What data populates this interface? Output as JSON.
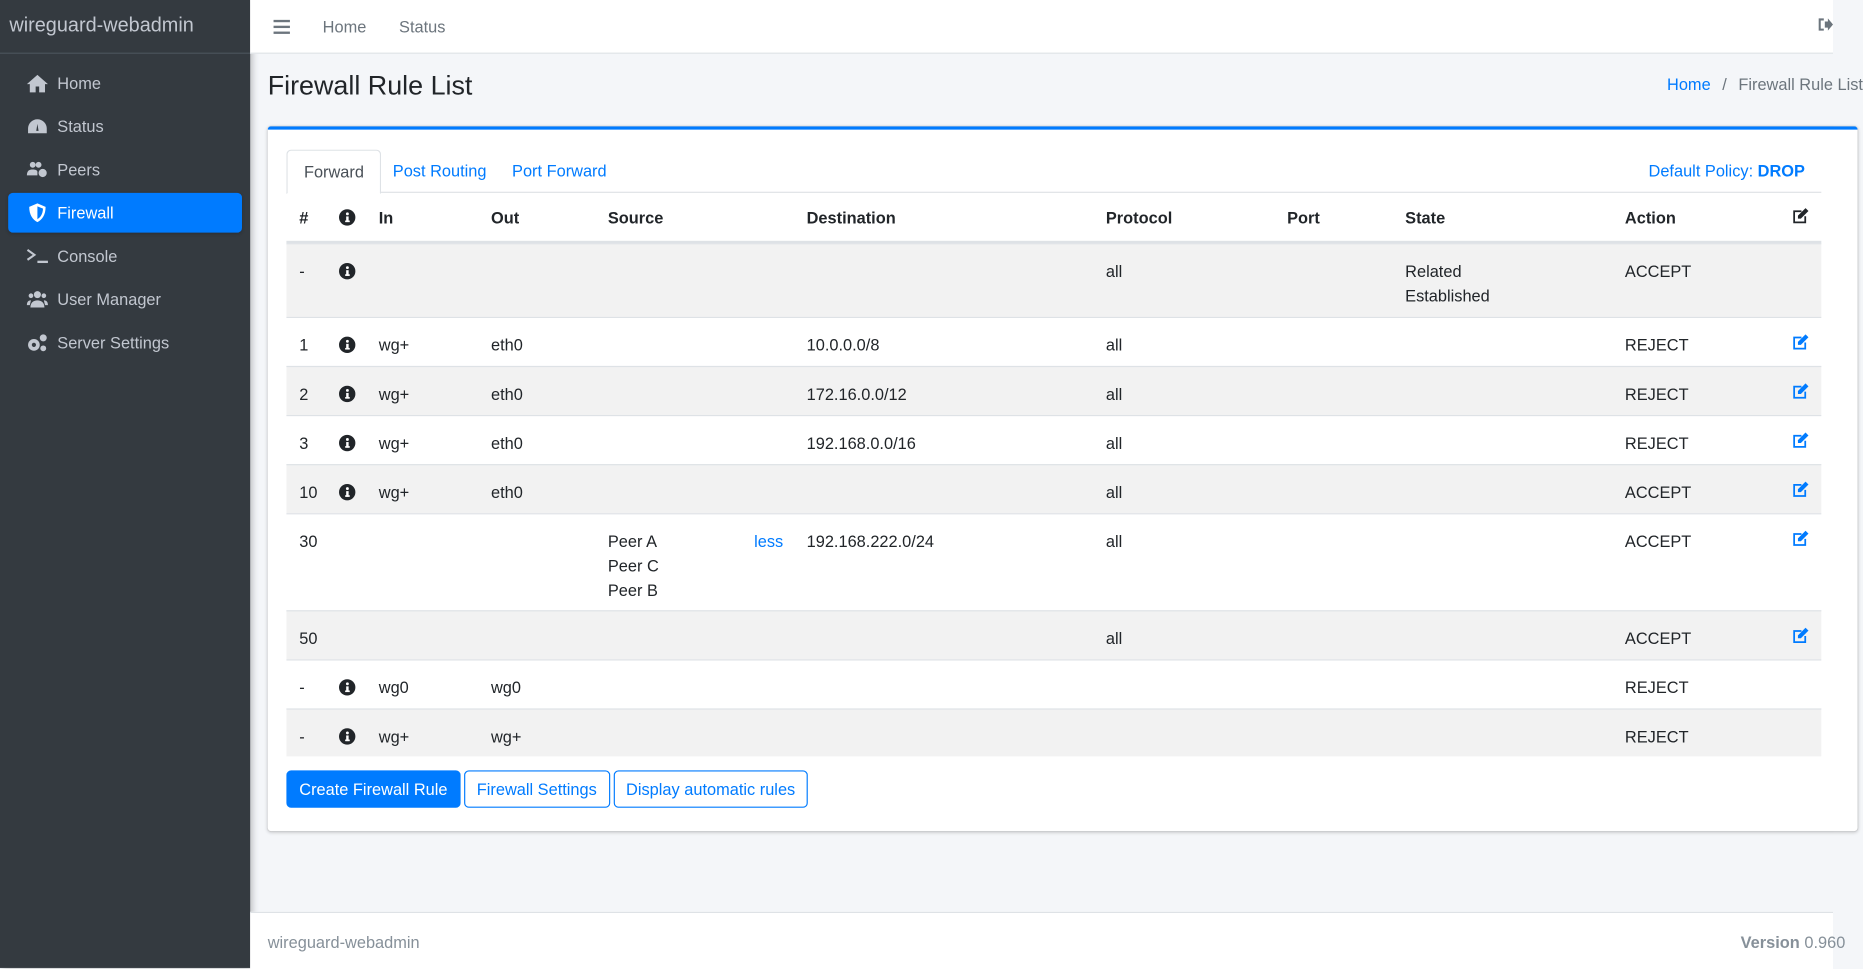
{
  "app": {
    "brand": "wireguard-webadmin",
    "accent": "#007bff"
  },
  "sidebar": {
    "items": [
      {
        "label": "Home",
        "icon": "home-icon"
      },
      {
        "label": "Status",
        "icon": "gauge-icon"
      },
      {
        "label": "Peers",
        "icon": "users-cog-icon"
      },
      {
        "label": "Firewall",
        "icon": "shield-icon",
        "active": true
      },
      {
        "label": "Console",
        "icon": "terminal-icon"
      },
      {
        "label": "User Manager",
        "icon": "users-icon"
      },
      {
        "label": "Server Settings",
        "icon": "cogs-icon"
      }
    ]
  },
  "topbar": {
    "links": [
      "Home",
      "Status"
    ],
    "logout_icon": "sign-out-icon"
  },
  "page": {
    "title": "Firewall Rule List",
    "breadcrumb": {
      "home": "Home",
      "separator": "/",
      "current": "Firewall Rule List"
    }
  },
  "tabs": [
    {
      "label": "Forward",
      "active": true
    },
    {
      "label": "Post Routing"
    },
    {
      "label": "Port Forward"
    }
  ],
  "policy": {
    "label": "Default Policy:",
    "value": "DROP"
  },
  "table": {
    "headers": [
      "#",
      "",
      "In",
      "Out",
      "Source",
      "Destination",
      "Protocol",
      "Port",
      "State",
      "Action",
      ""
    ],
    "rows": [
      {
        "num": "-",
        "info": true,
        "in": "",
        "out": "",
        "source": [],
        "destination": "",
        "protocol": "all",
        "port": "",
        "state": [
          "Related",
          "Established"
        ],
        "action": "ACCEPT",
        "edit": false
      },
      {
        "num": "1",
        "info": true,
        "in": "wg+",
        "out": "eth0",
        "source": [],
        "destination": "10.0.0.0/8",
        "protocol": "all",
        "port": "",
        "state": [],
        "action": "REJECT",
        "edit": true
      },
      {
        "num": "2",
        "info": true,
        "in": "wg+",
        "out": "eth0",
        "source": [],
        "destination": "172.16.0.0/12",
        "protocol": "all",
        "port": "",
        "state": [],
        "action": "REJECT",
        "edit": true
      },
      {
        "num": "3",
        "info": true,
        "in": "wg+",
        "out": "eth0",
        "source": [],
        "destination": "192.168.0.0/16",
        "protocol": "all",
        "port": "",
        "state": [],
        "action": "REJECT",
        "edit": true
      },
      {
        "num": "10",
        "info": true,
        "in": "wg+",
        "out": "eth0",
        "source": [],
        "destination": "",
        "protocol": "all",
        "port": "",
        "state": [],
        "action": "ACCEPT",
        "edit": true
      },
      {
        "num": "30",
        "info": false,
        "in": "",
        "out": "",
        "source": [
          "Peer A",
          "Peer C",
          "Peer B"
        ],
        "source_toggle": "less",
        "destination": "192.168.222.0/24",
        "protocol": "all",
        "port": "",
        "state": [],
        "action": "ACCEPT",
        "edit": true
      },
      {
        "num": "50",
        "info": false,
        "in": "",
        "out": "",
        "source": [],
        "destination": "",
        "protocol": "all",
        "port": "",
        "state": [],
        "action": "ACCEPT",
        "edit": true
      },
      {
        "num": "-",
        "info": true,
        "in": "wg0",
        "out": "wg0",
        "source": [],
        "destination": "",
        "protocol": "",
        "port": "",
        "state": [],
        "action": "REJECT",
        "edit": false
      },
      {
        "num": "-",
        "info": true,
        "in": "wg+",
        "out": "wg+",
        "source": [],
        "destination": "",
        "protocol": "",
        "port": "",
        "state": [],
        "action": "REJECT",
        "edit": false
      }
    ]
  },
  "buttons": {
    "create": "Create Firewall Rule",
    "settings": "Firewall Settings",
    "auto": "Display automatic rules"
  },
  "footer": {
    "left": "wireguard-webadmin",
    "version_label": "Version",
    "version": "0.960"
  }
}
